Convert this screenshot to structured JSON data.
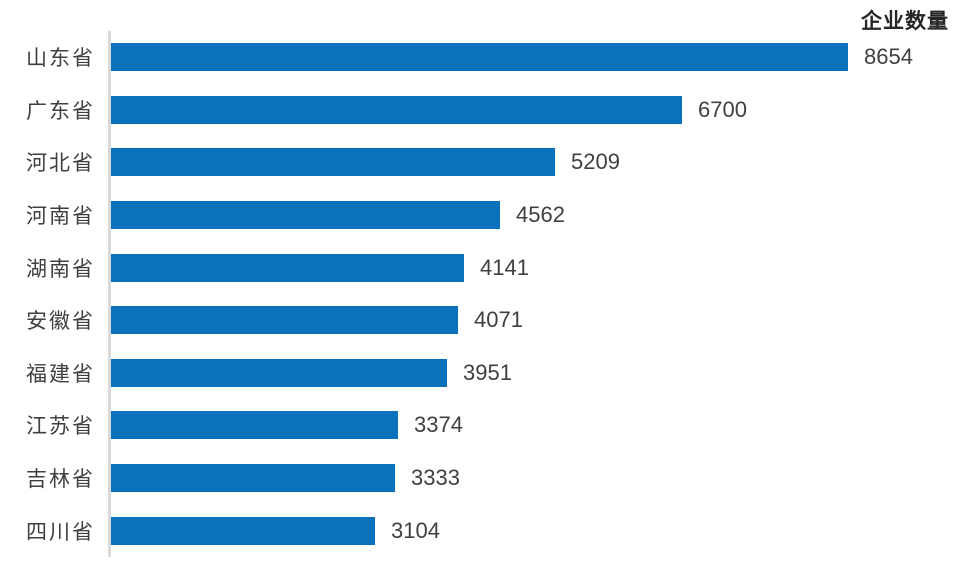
{
  "chart_data": {
    "type": "bar",
    "orientation": "horizontal",
    "title": "企业数量",
    "categories": [
      "山东省",
      "广东省",
      "河北省",
      "河南省",
      "湖南省",
      "安徽省",
      "福建省",
      "江苏省",
      "吉林省",
      "四川省"
    ],
    "values": [
      8654,
      6700,
      5209,
      4562,
      4141,
      4071,
      3951,
      3374,
      3333,
      3104
    ],
    "xlim": [
      0,
      9000
    ],
    "grid": false,
    "legend": false,
    "value_labels": "outside-end",
    "colors": {
      "bar": "#0a71bc",
      "axis_line": "#d9d9d9",
      "category_label": "#3f3f3f",
      "value_label": "#404040",
      "title": "#262626",
      "background": "#ffffff"
    }
  }
}
